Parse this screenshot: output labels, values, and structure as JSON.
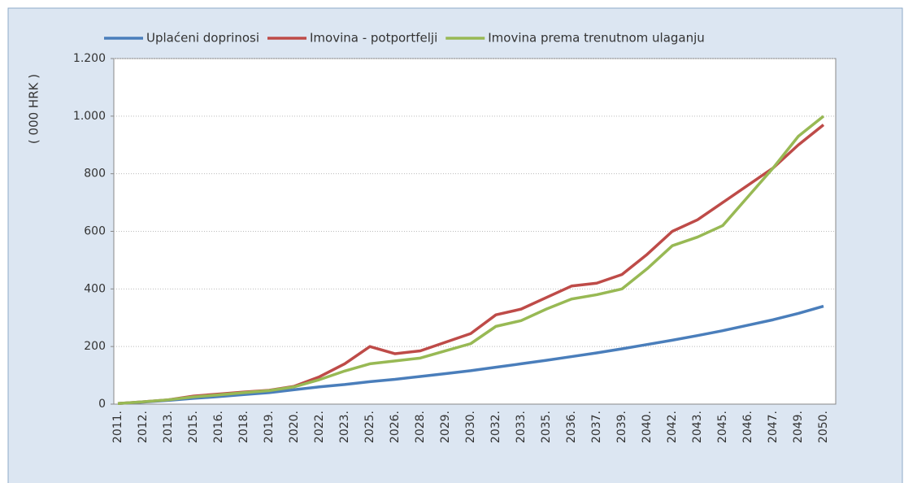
{
  "chart_data": {
    "type": "line",
    "ylabel": "( 000 HRK )",
    "categories": [
      "2011.",
      "2012.",
      "2013.",
      "2015.",
      "2016.",
      "2018.",
      "2019.",
      "2020.",
      "2022.",
      "2023.",
      "2025.",
      "2026.",
      "2028.",
      "2029.",
      "2030.",
      "2032.",
      "2033.",
      "2035.",
      "2036.",
      "2037.",
      "2039.",
      "2040.",
      "2042.",
      "2043.",
      "2045.",
      "2046.",
      "2047.",
      "2049.",
      "2050."
    ],
    "series": [
      {
        "name": "Uplaćeni doprinosi",
        "color": "#4a7ebb",
        "values": [
          2,
          7,
          13,
          20,
          26,
          33,
          40,
          50,
          60,
          68,
          78,
          86,
          96,
          106,
          116,
          128,
          140,
          152,
          165,
          178,
          192,
          207,
          222,
          238,
          255,
          274,
          293,
          315,
          340
        ]
      },
      {
        "name": "Imovina - potportfelji",
        "color": "#be4b48",
        "values": [
          2,
          8,
          15,
          28,
          35,
          42,
          48,
          62,
          95,
          140,
          200,
          175,
          185,
          215,
          245,
          310,
          330,
          370,
          410,
          420,
          450,
          520,
          600,
          640,
          700,
          760,
          820,
          900,
          970
        ]
      },
      {
        "name": "Imovina prema trenutnom ulaganju",
        "color": "#98b954",
        "values": [
          2,
          8,
          15,
          25,
          32,
          40,
          47,
          60,
          85,
          115,
          140,
          150,
          160,
          185,
          210,
          270,
          290,
          330,
          365,
          380,
          400,
          470,
          550,
          580,
          620,
          720,
          820,
          930,
          1000
        ]
      }
    ],
    "ylim": [
      0,
      1200
    ],
    "yticks": [
      0,
      200,
      400,
      600,
      800,
      {
        "value": 1000,
        "label": "1.000"
      },
      {
        "value": 1200,
        "label": "1.200"
      }
    ],
    "grid": true
  }
}
